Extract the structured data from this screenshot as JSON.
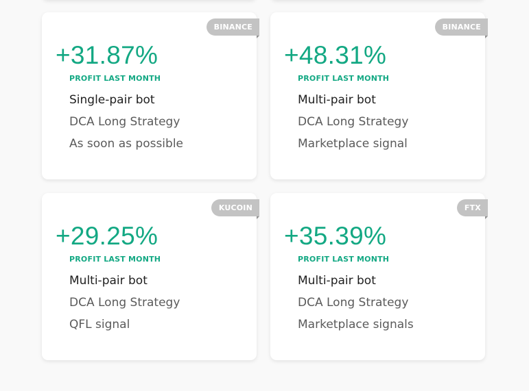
{
  "cards": [
    {
      "exchange": "BINANCE",
      "profit": "+31.87%",
      "profit_label": "PROFIT LAST MONTH",
      "bot_type": "Single-pair bot",
      "strategy": "DCA Long Strategy",
      "signal": "As soon as possible"
    },
    {
      "exchange": "BINANCE",
      "profit": "+48.31%",
      "profit_label": "PROFIT LAST MONTH",
      "bot_type": "Multi-pair bot",
      "strategy": "DCA Long Strategy",
      "signal": "Marketplace signal"
    },
    {
      "exchange": "KUCOIN",
      "profit": "+29.25%",
      "profit_label": "PROFIT LAST MONTH",
      "bot_type": "Multi-pair bot",
      "strategy": "DCA Long Strategy",
      "signal": "QFL signal"
    },
    {
      "exchange": "FTX",
      "profit": "+35.39%",
      "profit_label": "PROFIT LAST MONTH",
      "bot_type": "Multi-pair bot",
      "strategy": "DCA Long Strategy",
      "signal": "Marketplace signals"
    }
  ],
  "colors": {
    "accent": "#13a883",
    "tag_bg": "#c3c3c3",
    "page_bg": "#f9f9f9"
  }
}
